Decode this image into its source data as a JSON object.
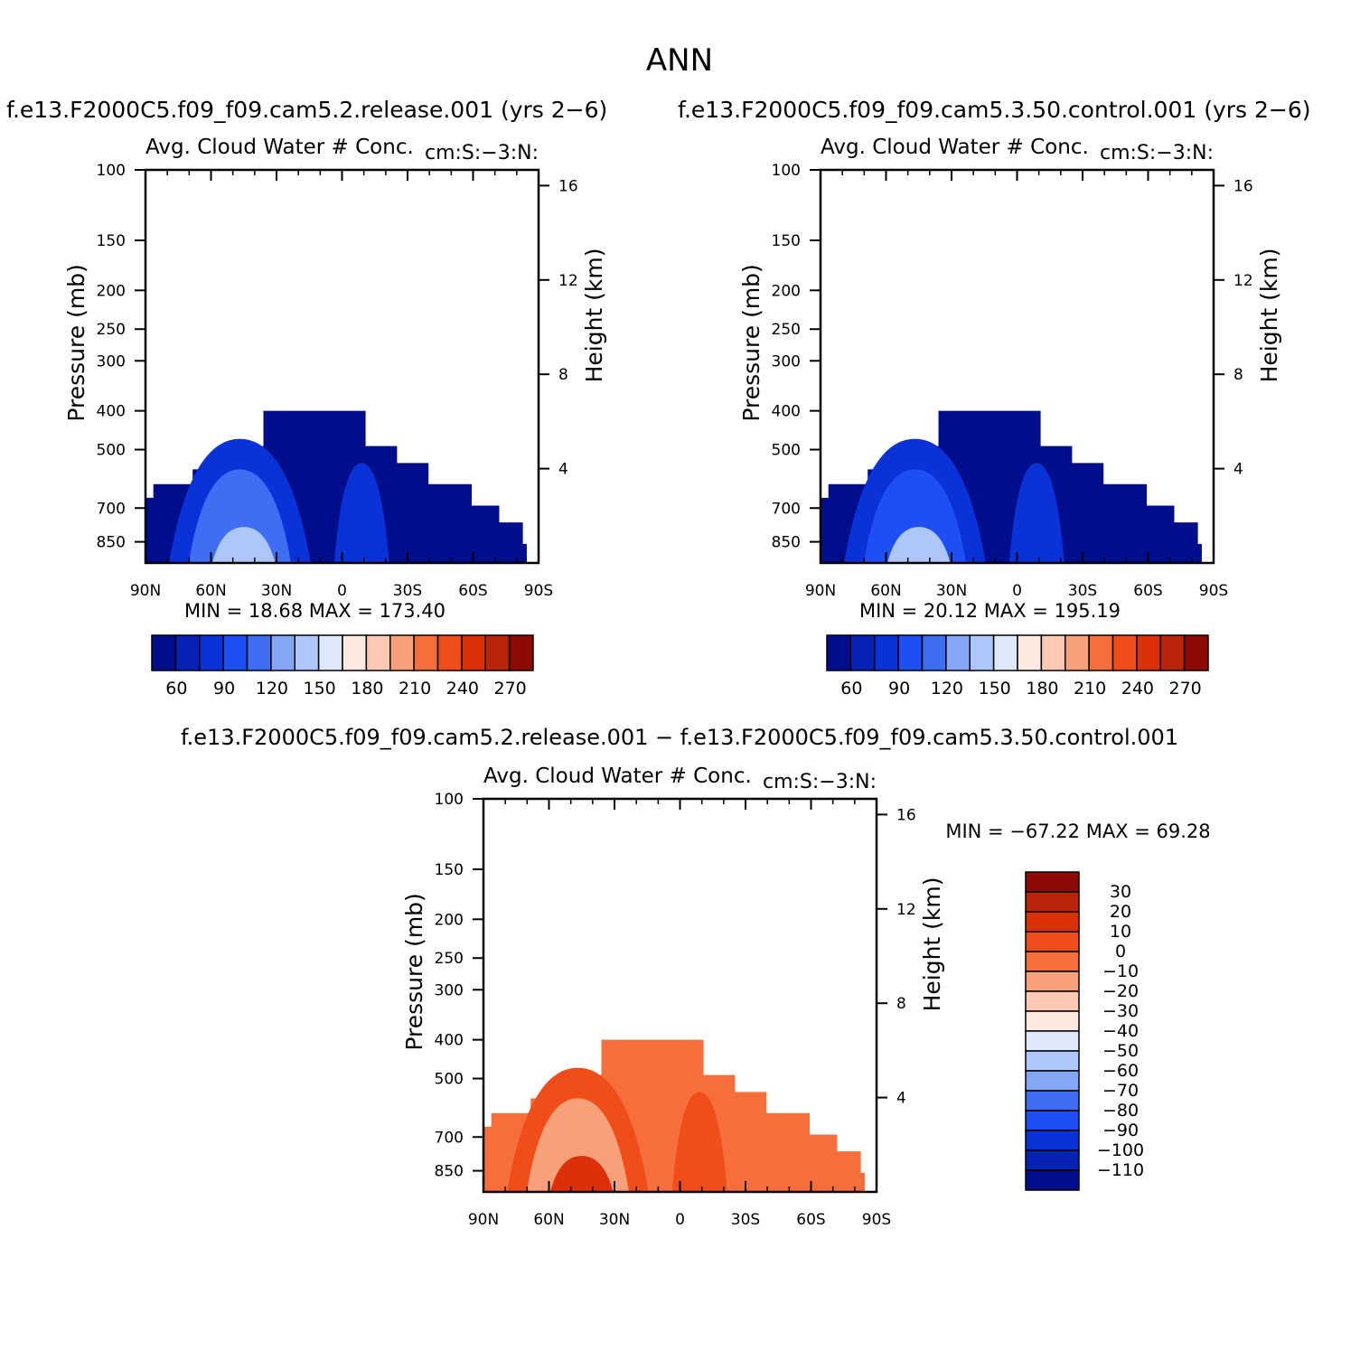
{
  "page_title": "ANN",
  "diff_title": "f.e13.F2000C5.f09_f09.cam5.2.release.001 − f.e13.F2000C5.f09_f09.cam5.3.50.control.001",
  "colors": {
    "abs_scale": [
      "#000e8c",
      "#0522b4",
      "#0a32d9",
      "#1e4ff5",
      "#3f6ef5",
      "#84a7f5",
      "#aec7f8",
      "#dde9fb",
      "#fde9df",
      "#fbc9b2",
      "#f7a07c",
      "#f56e3c",
      "#f04d18",
      "#dc3008",
      "#b82508",
      "#8c0a04"
    ],
    "diff_scale": [
      "#000e8c",
      "#0522b4",
      "#0a32d9",
      "#1e4ff5",
      "#3f6ef5",
      "#84a7f5",
      "#aec7f8",
      "#dde9fb",
      "#fde9df",
      "#fbc9b2",
      "#f7a07c",
      "#f56e3c",
      "#f04d18",
      "#dc3008",
      "#b82508",
      "#8c0a04"
    ]
  },
  "chart_data": [
    {
      "type": "heatmap",
      "case_title": "f.e13.F2000C5.f09_f09.cam5.2.release.001  (yrs 2−6)",
      "title": "Avg. Cloud Water # Conc.",
      "right_string": "cm:S:−3:N:",
      "ylabel": "Pressure (mb)",
      "y2label": "Height (km)",
      "x_ticks": [
        "90N",
        "60N",
        "30N",
        "0",
        "30S",
        "60S",
        "90S"
      ],
      "y_ticks": [
        100,
        150,
        200,
        250,
        300,
        400,
        500,
        700,
        850
      ],
      "y2_ticks": [
        4,
        8,
        12,
        16
      ],
      "stats": "MIN =   18.68   MAX =  173.40",
      "colorbar_labels": [
        "60",
        "90",
        "120",
        "150",
        "180",
        "210",
        "240",
        "270"
      ],
      "field_color_indices": {
        "base": 0,
        "mid": 2,
        "high": 4,
        "peak": 6
      }
    },
    {
      "type": "heatmap",
      "case_title": "f.e13.F2000C5.f09_f09.cam5.3.50.control.001  (yrs 2−6)",
      "title": "Avg. Cloud Water # Conc.",
      "right_string": "cm:S:−3:N:",
      "ylabel": "Pressure (mb)",
      "y2label": "Height (km)",
      "x_ticks": [
        "90N",
        "60N",
        "30N",
        "0",
        "30S",
        "60S",
        "90S"
      ],
      "y_ticks": [
        100,
        150,
        200,
        250,
        300,
        400,
        500,
        700,
        850
      ],
      "y2_ticks": [
        4,
        8,
        12,
        16
      ],
      "stats": "MIN =   20.12   MAX =  195.19",
      "colorbar_labels": [
        "60",
        "90",
        "120",
        "150",
        "180",
        "210",
        "240",
        "270"
      ],
      "field_color_indices": {
        "base": 0,
        "mid": 2,
        "high": 3,
        "peak": 6
      }
    },
    {
      "type": "heatmap",
      "title": "Avg. Cloud Water # Conc.",
      "right_string": "cm:S:−3:N:",
      "ylabel": "Pressure (mb)",
      "y2label": "Height (km)",
      "x_ticks": [
        "90N",
        "60N",
        "30N",
        "0",
        "30S",
        "60S",
        "90S"
      ],
      "y_ticks": [
        100,
        150,
        200,
        250,
        300,
        400,
        500,
        700,
        850
      ],
      "y2_ticks": [
        4,
        8,
        12,
        16
      ],
      "stats": "MIN = −67.22   MAX =   69.28",
      "colorbar_labels": [
        "30",
        "20",
        "10",
        "0",
        "−10",
        "−20",
        "−30",
        "−40",
        "−50",
        "−60",
        "−70",
        "−80",
        "−90",
        "−100",
        "−110"
      ],
      "field_color_indices": {
        "base": 11,
        "mid": 12,
        "high": 10,
        "peak": 13
      }
    }
  ]
}
